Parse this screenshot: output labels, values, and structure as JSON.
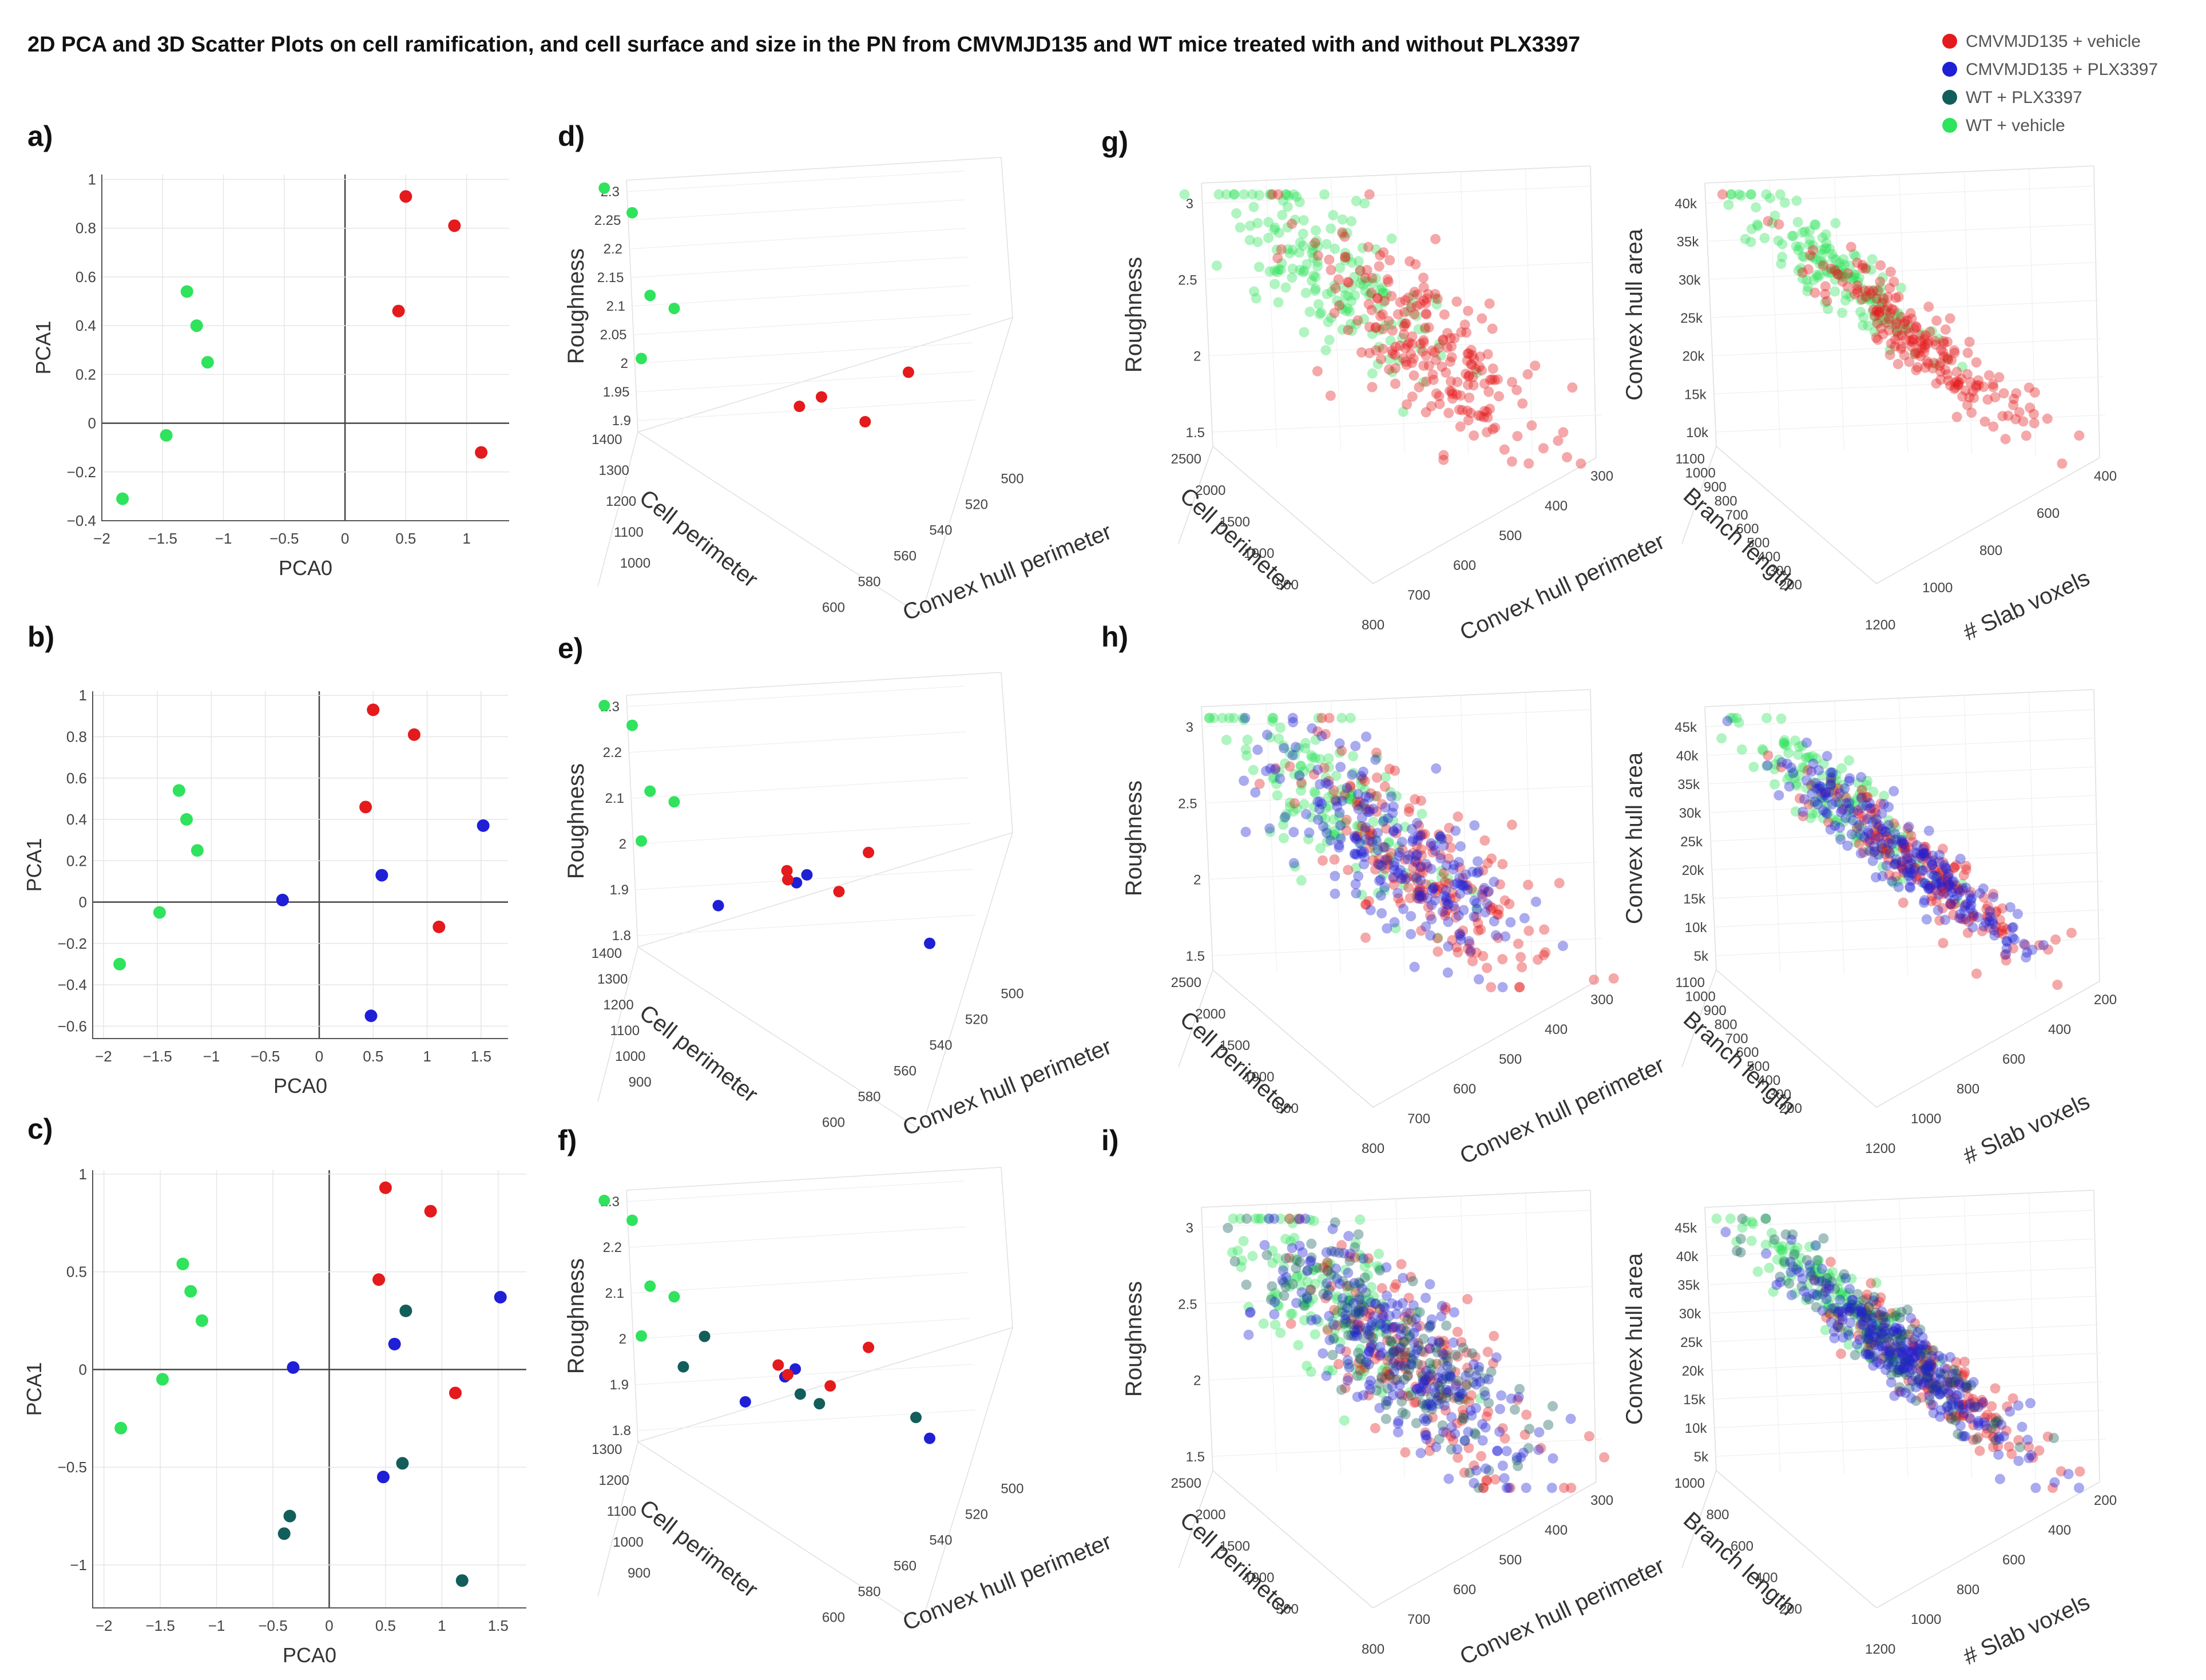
{
  "figure": {
    "title": "2D PCA and 3D Scatter Plots on cell ramification, and cell surface and size in the PN from CMVMJD135 and WT mice treated with and without PLX3397"
  },
  "legend": [
    {
      "label": "CMVMJD135 + vehicle",
      "color": "#e41a1c"
    },
    {
      "label": "CMVMJD135 + PLX3397",
      "color": "#1f1fd6"
    },
    {
      "label": "WT + PLX3397",
      "color": "#125e5a"
    },
    {
      "label": "WT + vehicle",
      "color": "#2fe35c"
    }
  ],
  "chart_data": [
    {
      "id": "a",
      "panel_label": "a)",
      "type": "scatter",
      "xlabel": "PCA0",
      "ylabel": "PCA1",
      "xlim": [
        -2,
        1.35
      ],
      "ylim": [
        -0.4,
        1.02
      ],
      "xticks": [
        -2,
        -1.5,
        -1,
        -0.5,
        0,
        0.5,
        1
      ],
      "xtick_labels": [
        "−2",
        "−1.5",
        "−1",
        "−0.5",
        "0",
        "0.5",
        "1"
      ],
      "yticks": [
        -0.4,
        -0.2,
        0,
        0.2,
        0.4,
        0.6,
        0.8,
        1
      ],
      "ytick_labels": [
        "−0.4",
        "−0.2",
        "0",
        "0.2",
        "0.4",
        "0.6",
        "0.8",
        "1"
      ],
      "series": [
        {
          "name": "CMVMJD135 + vehicle",
          "color": "#e41a1c",
          "x": [
            0.5,
            0.9,
            0.44,
            1.12
          ],
          "y": [
            0.93,
            0.81,
            0.46,
            -0.12
          ]
        },
        {
          "name": "WT + vehicle",
          "color": "#2fe35c",
          "x": [
            -1.3,
            -1.22,
            -1.13,
            -1.47,
            -1.83
          ],
          "y": [
            0.54,
            0.4,
            0.25,
            -0.05,
            -0.31
          ]
        }
      ]
    },
    {
      "id": "b",
      "panel_label": "b)",
      "type": "scatter",
      "xlabel": "PCA0",
      "ylabel": "PCA1",
      "xlim": [
        -2.1,
        1.75
      ],
      "ylim": [
        -0.66,
        1.02
      ],
      "xticks": [
        -2,
        -1.5,
        -1,
        -0.5,
        0,
        0.5,
        1,
        1.5
      ],
      "xtick_labels": [
        "−2",
        "−1.5",
        "−1",
        "−0.5",
        "0",
        "0.5",
        "1",
        "1.5"
      ],
      "yticks": [
        -0.6,
        -0.4,
        -0.2,
        0,
        0.2,
        0.4,
        0.6,
        0.8,
        1
      ],
      "ytick_labels": [
        "−0.6",
        "−0.4",
        "−0.2",
        "0",
        "0.2",
        "0.4",
        "0.6",
        "0.8",
        "1"
      ],
      "series": [
        {
          "name": "CMVMJD135 + vehicle",
          "color": "#e41a1c",
          "x": [
            0.5,
            0.88,
            0.43,
            1.11
          ],
          "y": [
            0.93,
            0.81,
            0.46,
            -0.12
          ]
        },
        {
          "name": "CMVMJD135 + PLX3397",
          "color": "#1f1fd6",
          "x": [
            -0.34,
            0.58,
            0.48,
            1.52
          ],
          "y": [
            0.01,
            0.13,
            -0.55,
            0.37
          ]
        },
        {
          "name": "WT + vehicle",
          "color": "#2fe35c",
          "x": [
            -1.3,
            -1.23,
            -1.13,
            -1.48,
            -1.85
          ],
          "y": [
            0.54,
            0.4,
            0.25,
            -0.05,
            -0.3
          ]
        }
      ]
    },
    {
      "id": "c",
      "panel_label": "c)",
      "type": "scatter",
      "xlabel": "PCA0",
      "ylabel": "PCA1",
      "xlim": [
        -2.1,
        1.75
      ],
      "ylim": [
        -1.22,
        1.02
      ],
      "xticks": [
        -2,
        -1.5,
        -1,
        -0.5,
        0,
        0.5,
        1,
        1.5
      ],
      "xtick_labels": [
        "−2",
        "−1.5",
        "−1",
        "−0.5",
        "0",
        "0.5",
        "1",
        "1.5"
      ],
      "yticks": [
        -1,
        -0.5,
        0,
        0.5,
        1
      ],
      "ytick_labels": [
        "−1",
        "−0.5",
        "0",
        "0.5",
        "1"
      ],
      "series": [
        {
          "name": "CMVMJD135 + vehicle",
          "color": "#e41a1c",
          "x": [
            0.5,
            0.9,
            0.44,
            1.12
          ],
          "y": [
            0.93,
            0.81,
            0.46,
            -0.12
          ]
        },
        {
          "name": "CMVMJD135 + PLX3397",
          "color": "#1f1fd6",
          "x": [
            -0.32,
            0.58,
            0.48,
            1.52
          ],
          "y": [
            0.01,
            0.13,
            -0.55,
            0.37
          ]
        },
        {
          "name": "WT + PLX3397",
          "color": "#125e5a",
          "x": [
            0.68,
            -0.35,
            -0.4,
            0.65,
            1.18
          ],
          "y": [
            0.3,
            -0.75,
            -0.84,
            -0.48,
            -1.08
          ]
        },
        {
          "name": "WT + vehicle",
          "color": "#2fe35c",
          "x": [
            -1.3,
            -1.23,
            -1.13,
            -1.48,
            -1.85
          ],
          "y": [
            0.54,
            0.4,
            0.25,
            -0.05,
            -0.3
          ]
        }
      ]
    },
    {
      "id": "d",
      "panel_label": "d)",
      "type": "scatter3d",
      "zlabel": "Roughness",
      "ylabel": "Cell perimeter",
      "xlabel": "Convex hull perimeter",
      "zticks": [
        "2.3",
        "2.25",
        "2.2",
        "2.15",
        "2.1",
        "2.05",
        "2",
        "1.95",
        "1.9"
      ],
      "yticks": [
        "1400",
        "1300",
        "1200",
        "1100",
        "1000"
      ],
      "xticks": [
        "600",
        "580",
        "560",
        "540",
        "520",
        "500"
      ],
      "series": [
        {
          "name": "WT + vehicle",
          "color": "#2fe35c",
          "x": [
            610,
            601,
            596,
            588,
            600
          ],
          "y": [
            1370,
            1330,
            1250,
            1230,
            1180
          ],
          "z": [
            2.32,
            2.28,
            2.14,
            2.12,
            2.03
          ]
        },
        {
          "name": "CMVMJD135 + vehicle",
          "color": "#e41a1c",
          "x": [
            508,
            540,
            548,
            526
          ],
          "y": [
            1200,
            1050,
            1020,
            980
          ],
          "z": [
            2.04,
            1.98,
            1.96,
            1.94
          ]
        }
      ]
    },
    {
      "id": "e",
      "panel_label": "e)",
      "type": "scatter3d",
      "zlabel": "Roughness",
      "ylabel": "Cell perimeter",
      "xlabel": "Convex hull perimeter",
      "zticks": [
        "2.3",
        "2.2",
        "2.1",
        "2",
        "1.9",
        "1.8"
      ],
      "yticks": [
        "1400",
        "1300",
        "1200",
        "1100",
        "1000",
        "900"
      ],
      "xticks": [
        "600",
        "580",
        "560",
        "540",
        "520",
        "500"
      ],
      "series": [
        {
          "name": "WT + vehicle",
          "color": "#2fe35c",
          "x": [
            610,
            601,
            596,
            588,
            600
          ],
          "y": [
            1370,
            1330,
            1250,
            1230,
            1180
          ],
          "z": [
            2.32,
            2.28,
            2.14,
            2.12,
            2.03
          ]
        },
        {
          "name": "CMVMJD135 + PLX3397",
          "color": "#1f1fd6",
          "x": [
            575,
            544,
            548,
            505
          ],
          "y": [
            1080,
            1120,
            1090,
            900
          ],
          "z": [
            1.9,
            1.98,
            1.96,
            1.84
          ]
        },
        {
          "name": "CMVMJD135 + vehicle",
          "color": "#e41a1c",
          "x": [
            522,
            552,
            552,
            535
          ],
          "y": [
            1180,
            1040,
            1020,
            980
          ],
          "z": [
            2.04,
            1.98,
            1.96,
            1.94
          ]
        }
      ]
    },
    {
      "id": "f",
      "panel_label": "f)",
      "type": "scatter3d",
      "zlabel": "Roughness",
      "ylabel": "Cell perimeter",
      "xlabel": "Convex hull perimeter",
      "zticks": [
        "2.3",
        "2.2",
        "2.1",
        "2",
        "1.9",
        "1.8"
      ],
      "yticks": [
        "1300",
        "1200",
        "1100",
        "1000",
        "900"
      ],
      "xticks": [
        "600",
        "580",
        "560",
        "540",
        "520",
        "500"
      ],
      "series": [
        {
          "name": "WT + vehicle",
          "color": "#2fe35c",
          "x": [
            610,
            601,
            596,
            588,
            600
          ],
          "y": [
            1370,
            1330,
            1250,
            1230,
            1180
          ],
          "z": [
            2.32,
            2.28,
            2.14,
            2.12,
            2.03
          ]
        },
        {
          "name": "WT + PLX3397",
          "color": "#125e5a",
          "x": [
            578,
            586,
            548,
            542,
            510
          ],
          "y": [
            1200,
            1150,
            1000,
            960,
            880
          ],
          "z": [
            2.04,
            1.97,
            1.92,
            1.9,
            1.88
          ]
        },
        {
          "name": "CMVMJD135 + PLX3397",
          "color": "#1f1fd6",
          "x": [
            566,
            548,
            552,
            505
          ],
          "y": [
            1060,
            1120,
            1090,
            900
          ],
          "z": [
            1.9,
            1.98,
            1.96,
            1.84
          ]
        },
        {
          "name": "CMVMJD135 + vehicle",
          "color": "#e41a1c",
          "x": [
            522,
            555,
            552,
            538
          ],
          "y": [
            1180,
            1040,
            1020,
            980
          ],
          "z": [
            2.04,
            1.98,
            1.96,
            1.94
          ]
        }
      ]
    },
    {
      "id": "g-1",
      "panel_label": "g)",
      "type": "scatter3d",
      "zlabel": "Roughness",
      "ylabel": "Cell perimeter",
      "xlabel": "Convex hull perimeter",
      "zticks": [
        "3",
        "2.5",
        "2",
        "1.5"
      ],
      "yticks": [
        "2500",
        "2000",
        "1500",
        "1000",
        "500"
      ],
      "xticks": [
        "800",
        "700",
        "600",
        "500",
        "400",
        "300"
      ],
      "groups": [
        {
          "name": "WT + vehicle",
          "color": "#2fe35c",
          "n": 170
        },
        {
          "name": "CMVMJD135 + vehicle",
          "color": "#e41a1c",
          "n": 220
        }
      ]
    },
    {
      "id": "g-2",
      "panel_label": "",
      "type": "scatter3d",
      "zlabel": "Convex hull area",
      "ylabel": "Branch length",
      "xlabel": "# Slab voxels",
      "zticks": [
        "40k",
        "35k",
        "30k",
        "25k",
        "20k",
        "15k",
        "10k"
      ],
      "yticks": [
        "1100",
        "1000",
        "900",
        "800",
        "700",
        "600",
        "500",
        "400",
        "300",
        "200"
      ],
      "xticks": [
        "1200",
        "1000",
        "800",
        "600",
        "400"
      ],
      "groups": [
        {
          "name": "WT + vehicle",
          "color": "#2fe35c",
          "n": 150
        },
        {
          "name": "CMVMJD135 + vehicle",
          "color": "#e41a1c",
          "n": 200
        }
      ]
    },
    {
      "id": "h-1",
      "panel_label": "h)",
      "type": "scatter3d",
      "zlabel": "Roughness",
      "ylabel": "Cell perimeter",
      "xlabel": "Convex hull perimeter",
      "zticks": [
        "3",
        "2.5",
        "2",
        "1.5"
      ],
      "yticks": [
        "2500",
        "2000",
        "1500",
        "1000",
        "500"
      ],
      "xticks": [
        "800",
        "700",
        "600",
        "500",
        "400",
        "300"
      ],
      "groups": [
        {
          "name": "WT + vehicle",
          "color": "#2fe35c",
          "n": 150
        },
        {
          "name": "CMVMJD135 + vehicle",
          "color": "#e41a1c",
          "n": 190
        },
        {
          "name": "CMVMJD135 + PLX3397",
          "color": "#1f1fd6",
          "n": 220
        }
      ]
    },
    {
      "id": "h-2",
      "panel_label": "",
      "type": "scatter3d",
      "zlabel": "Convex hull area",
      "ylabel": "Branch length",
      "xlabel": "# Slab voxels",
      "zticks": [
        "45k",
        "40k",
        "35k",
        "30k",
        "25k",
        "20k",
        "15k",
        "10k",
        "5k"
      ],
      "yticks": [
        "1100",
        "1000",
        "900",
        "800",
        "700",
        "600",
        "500",
        "400",
        "300",
        "200"
      ],
      "xticks": [
        "1200",
        "1000",
        "800",
        "600",
        "400",
        "200"
      ],
      "groups": [
        {
          "name": "WT + vehicle",
          "color": "#2fe35c",
          "n": 130
        },
        {
          "name": "CMVMJD135 + vehicle",
          "color": "#e41a1c",
          "n": 170
        },
        {
          "name": "CMVMJD135 + PLX3397",
          "color": "#1f1fd6",
          "n": 220
        }
      ]
    },
    {
      "id": "i-1",
      "panel_label": "i)",
      "type": "scatter3d",
      "zlabel": "Roughness",
      "ylabel": "Cell perimeter",
      "xlabel": "Convex hull perimeter",
      "zticks": [
        "3",
        "2.5",
        "2",
        "1.5"
      ],
      "yticks": [
        "2500",
        "2000",
        "1500",
        "1000",
        "500"
      ],
      "xticks": [
        "800",
        "700",
        "600",
        "500",
        "400",
        "300"
      ],
      "groups": [
        {
          "name": "WT + vehicle",
          "color": "#2fe35c",
          "n": 140
        },
        {
          "name": "CMVMJD135 + vehicle",
          "color": "#e41a1c",
          "n": 160
        },
        {
          "name": "WT + PLX3397",
          "color": "#125e5a",
          "n": 180
        },
        {
          "name": "CMVMJD135 + PLX3397",
          "color": "#1f1fd6",
          "n": 220
        }
      ]
    },
    {
      "id": "i-2",
      "panel_label": "",
      "type": "scatter3d",
      "zlabel": "Convex hull area",
      "ylabel": "Branch length",
      "xlabel": "# Slab voxels",
      "zticks": [
        "45k",
        "40k",
        "35k",
        "30k",
        "25k",
        "20k",
        "15k",
        "10k",
        "5k"
      ],
      "yticks": [
        "1000",
        "800",
        "600",
        "400",
        "200"
      ],
      "xticks": [
        "1200",
        "1000",
        "800",
        "600",
        "400",
        "200"
      ],
      "groups": [
        {
          "name": "WT + vehicle",
          "color": "#2fe35c",
          "n": 120
        },
        {
          "name": "CMVMJD135 + vehicle",
          "color": "#e41a1c",
          "n": 150
        },
        {
          "name": "WT + PLX3397",
          "color": "#125e5a",
          "n": 160
        },
        {
          "name": "CMVMJD135 + PLX3397",
          "color": "#1f1fd6",
          "n": 220
        }
      ]
    }
  ]
}
